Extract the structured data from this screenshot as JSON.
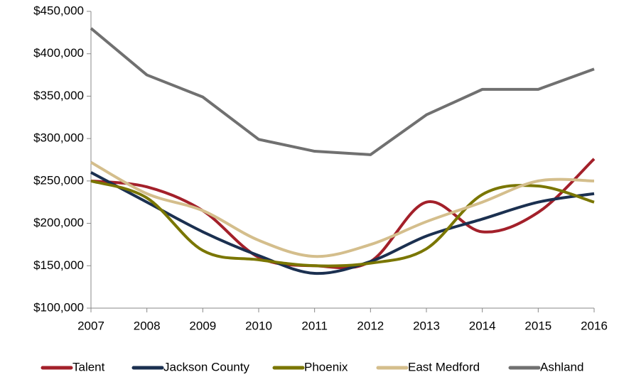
{
  "chart_data": {
    "type": "line",
    "categories": [
      "2007",
      "2008",
      "2009",
      "2010",
      "2011",
      "2012",
      "2013",
      "2014",
      "2015",
      "2016"
    ],
    "series": [
      {
        "name": "Talent",
        "color": "#a3202a",
        "smooth": true,
        "values": [
          250000,
          243000,
          215000,
          160000,
          150000,
          155000,
          225000,
          190000,
          213000,
          276000
        ]
      },
      {
        "name": "Jackson County",
        "color": "#1b3050",
        "smooth": true,
        "values": [
          260000,
          225000,
          190000,
          162000,
          141000,
          155000,
          185000,
          205000,
          225000,
          235000
        ]
      },
      {
        "name": "Phoenix",
        "color": "#7a7600",
        "smooth": true,
        "values": [
          250000,
          230000,
          168000,
          157000,
          150000,
          153000,
          170000,
          234000,
          244000,
          225000
        ]
      },
      {
        "name": "East Medford",
        "color": "#d4be8c",
        "smooth": true,
        "values": [
          272000,
          235000,
          215000,
          180000,
          161000,
          175000,
          202000,
          225000,
          250000,
          250000
        ]
      },
      {
        "name": "Ashland",
        "color": "#707070",
        "smooth": false,
        "values": [
          430000,
          375000,
          349000,
          299000,
          285000,
          281000,
          328000,
          358000,
          358000,
          382000
        ]
      }
    ],
    "ylim": [
      100000,
      450000
    ],
    "yticks": [
      {
        "value": 100000,
        "label": "$100,000"
      },
      {
        "value": 150000,
        "label": "$150,000"
      },
      {
        "value": 200000,
        "label": "$200,000"
      },
      {
        "value": 250000,
        "label": "$250,000"
      },
      {
        "value": 300000,
        "label": "$300,000"
      },
      {
        "value": 350000,
        "label": "$350,000"
      },
      {
        "value": 400000,
        "label": "$400,000"
      },
      {
        "value": 450000,
        "label": "$450,000"
      }
    ],
    "grid": false
  }
}
